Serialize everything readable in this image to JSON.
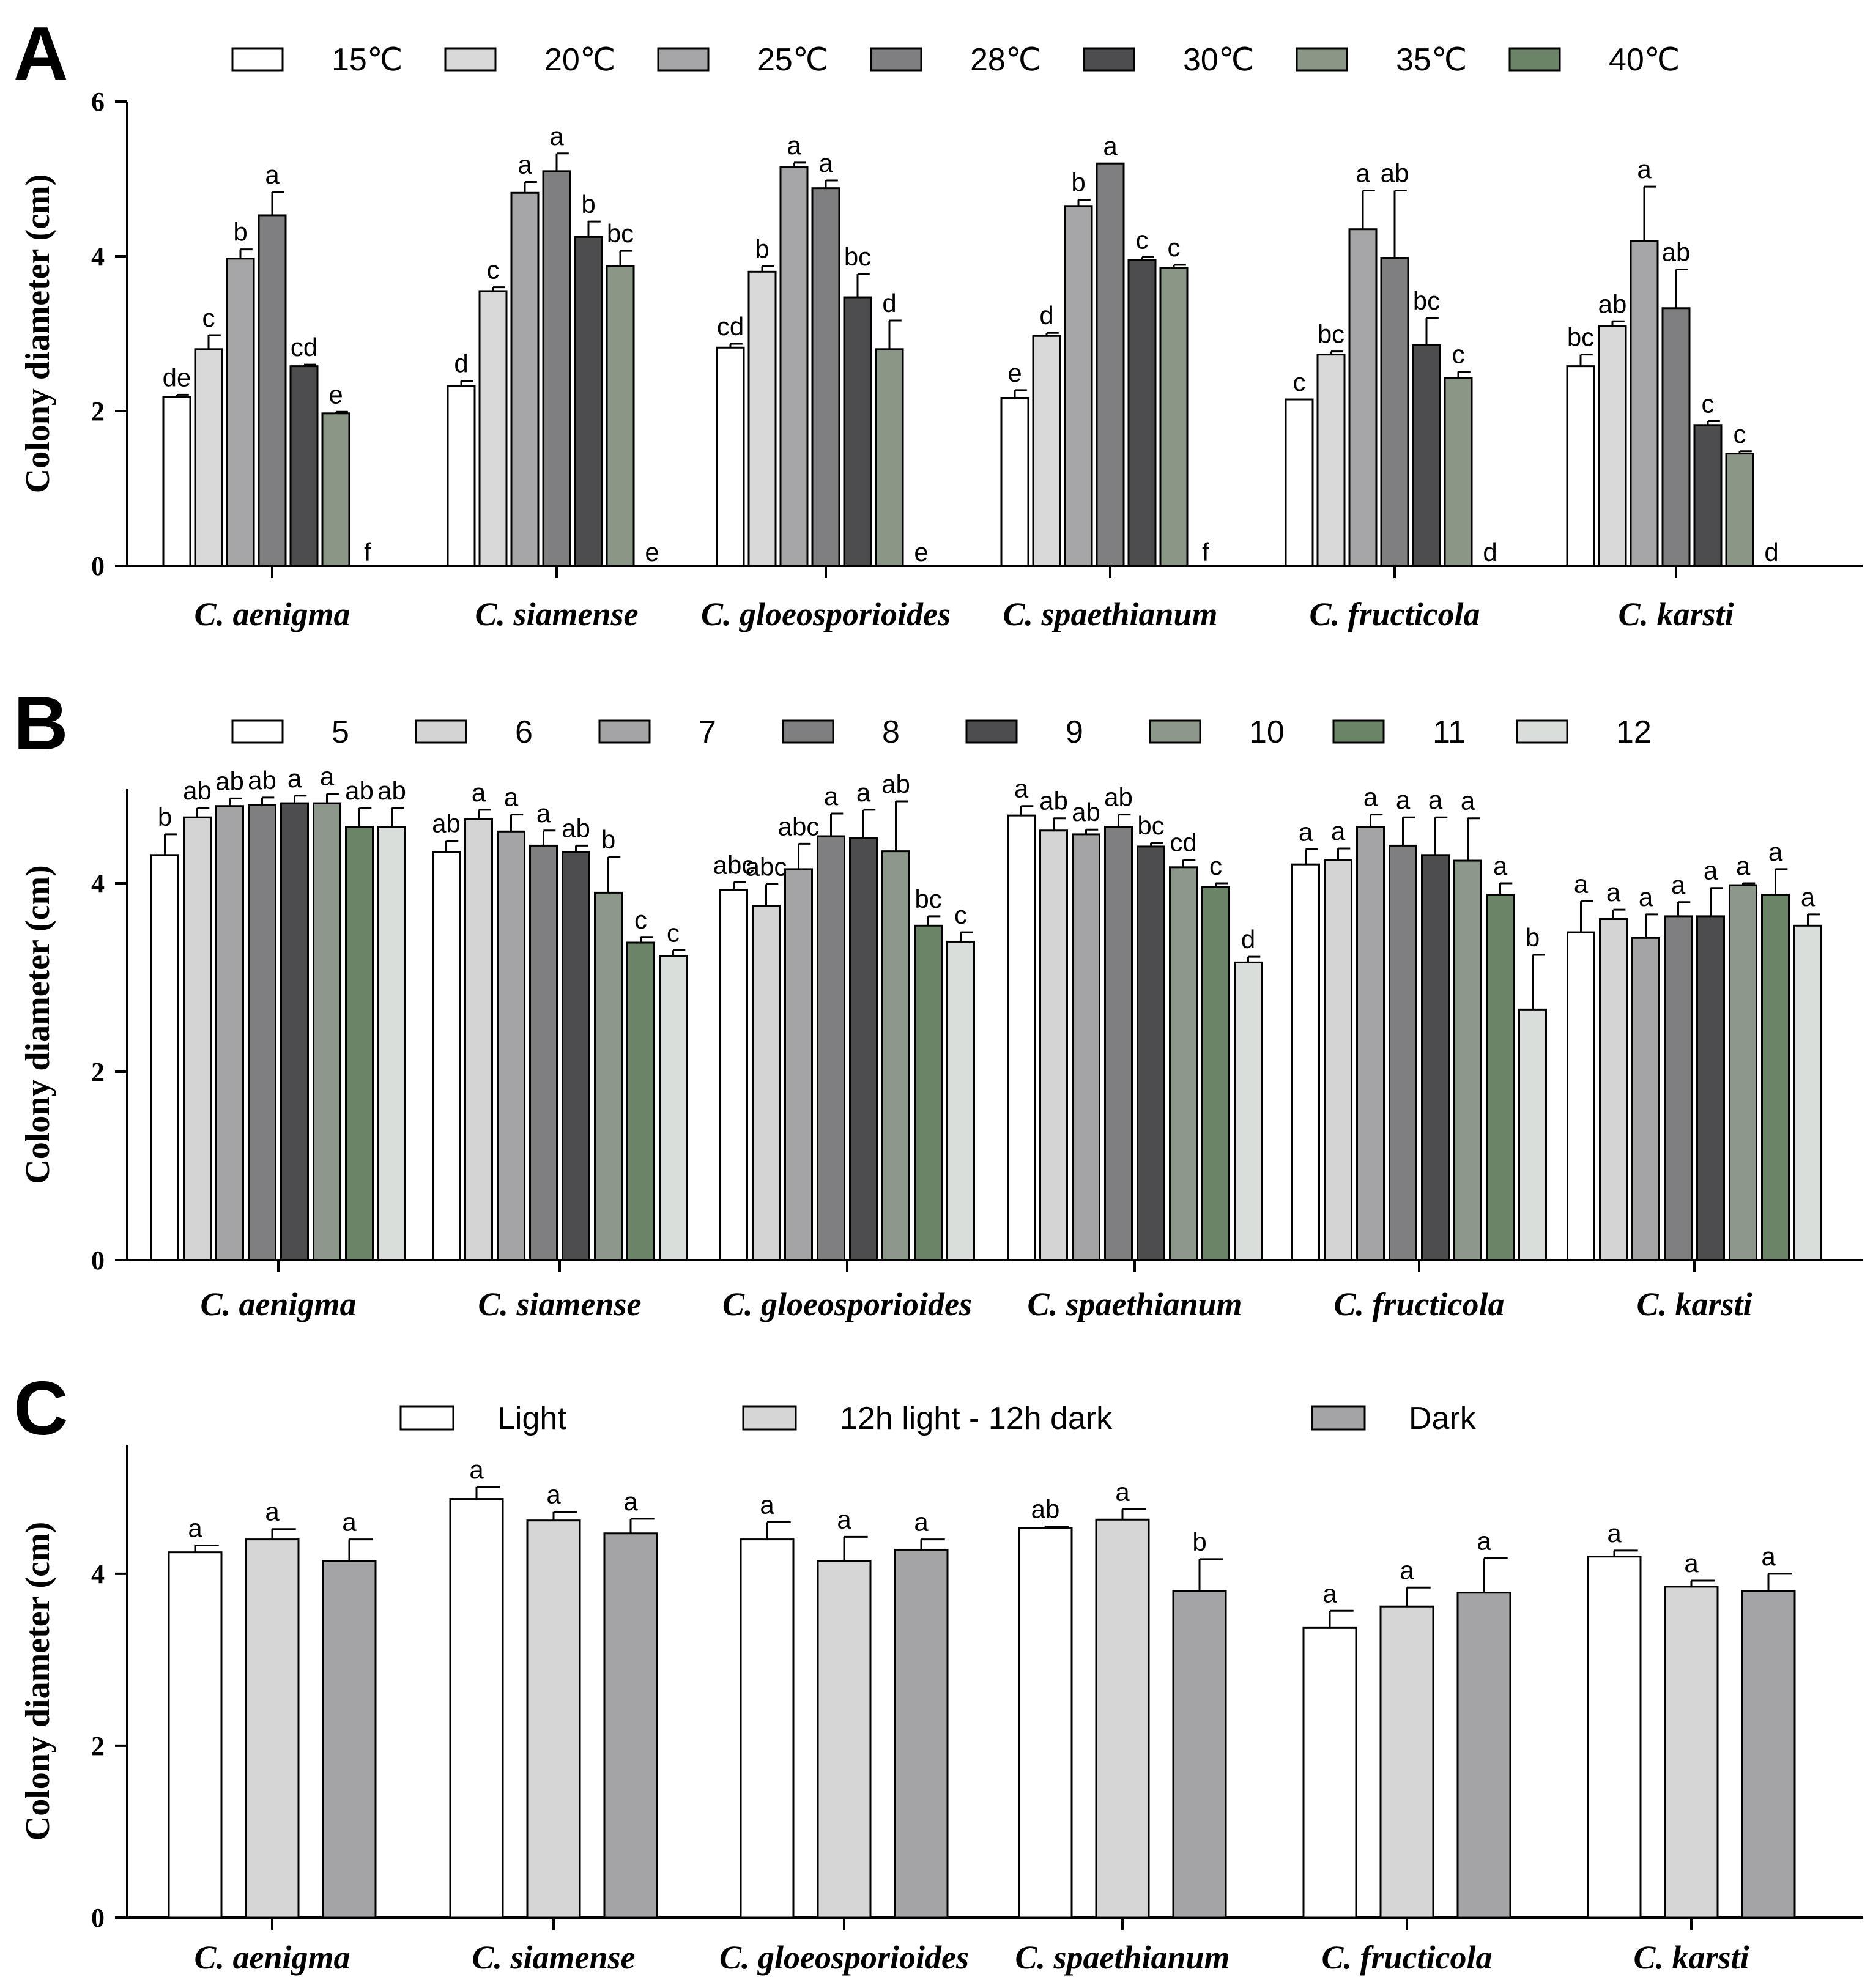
{
  "colors": {
    "15C": "#ffffff",
    "20C": "#d9d9d9",
    "25C": "#a6a6a9",
    "28C": "#7f7f82",
    "30C": "#4d4d4f",
    "35C": "#8a9686",
    "40C": "#6b8367",
    "pH5": "#ffffff",
    "pH6": "#d4d4d4",
    "pH7": "#a4a4a7",
    "pH8": "#7f7f82",
    "pH9": "#4d4d4f",
    "pH10": "#8c9889",
    "pH11": "#6b8367",
    "pH12": "#dadedb",
    "light": "#ffffff",
    "cycle": "#d6d6d6",
    "dark": "#a4a4a7"
  },
  "chart_data": [
    {
      "type": "bar",
      "panel": "A",
      "ylabel": "Colony diameter (cm)",
      "ylim": [
        0,
        6
      ],
      "yticks": [
        "0",
        "2",
        "4",
        "6"
      ],
      "categories": [
        "C. aenigma",
        "C. siamense",
        "C. gloeosporioides",
        "C. spaethianum",
        "C. fructicola",
        "C. karsti"
      ],
      "series": [
        {
          "name": "15℃",
          "color_key": "15C",
          "values": [
            2.18,
            2.32,
            2.82,
            2.17,
            2.15,
            2.58
          ],
          "errors": [
            0.03,
            0.07,
            0.05,
            0.1,
            0,
            0.15
          ],
          "labels": [
            "de",
            "d",
            "cd",
            "e",
            "c",
            "bc"
          ]
        },
        {
          "name": "20℃",
          "color_key": "20C",
          "values": [
            2.8,
            3.55,
            3.8,
            2.97,
            2.73,
            3.1
          ],
          "errors": [
            0.18,
            0.05,
            0.07,
            0.04,
            0.04,
            0.06
          ],
          "labels": [
            "c",
            "c",
            "b",
            "d",
            "bc",
            "ab"
          ]
        },
        {
          "name": "25℃",
          "color_key": "25C",
          "values": [
            3.97,
            4.82,
            5.15,
            4.65,
            4.35,
            4.2
          ],
          "errors": [
            0.12,
            0.14,
            0.06,
            0.08,
            0.5,
            0.7
          ],
          "labels": [
            "b",
            "a",
            "a",
            "b",
            "a",
            "a"
          ]
        },
        {
          "name": "28℃",
          "color_key": "28C",
          "values": [
            4.53,
            5.1,
            4.88,
            5.2,
            3.98,
            3.33
          ],
          "errors": [
            0.3,
            0.23,
            0.1,
            0,
            0.87,
            0.5
          ],
          "labels": [
            "a",
            "a",
            "a",
            "a",
            "ab",
            "ab"
          ]
        },
        {
          "name": "30℃",
          "color_key": "30C",
          "values": [
            2.58,
            4.25,
            3.47,
            3.95,
            2.85,
            1.82
          ],
          "errors": [
            0.02,
            0.2,
            0.3,
            0.04,
            0.35,
            0.05
          ],
          "labels": [
            "cd",
            "b",
            "bc",
            "c",
            "bc",
            "c"
          ]
        },
        {
          "name": "35℃",
          "color_key": "35C",
          "values": [
            1.97,
            3.87,
            2.8,
            3.85,
            2.43,
            1.45
          ],
          "errors": [
            0.02,
            0.2,
            0.37,
            0.04,
            0.08,
            0.03
          ],
          "labels": [
            "e",
            "bc",
            "d",
            "c",
            "c",
            "c"
          ]
        },
        {
          "name": "40℃",
          "color_key": "40C",
          "values": [
            0,
            0,
            0,
            0,
            0,
            0
          ],
          "errors": [
            0,
            0,
            0,
            0,
            0,
            0
          ],
          "labels": [
            "f",
            "e",
            "e",
            "f",
            "d",
            "d"
          ]
        }
      ]
    },
    {
      "type": "bar",
      "panel": "B",
      "ylabel": "Colony diameter (cm)",
      "ylim": [
        0,
        5
      ],
      "yticks": [
        "0",
        "2",
        "4"
      ],
      "categories": [
        "C. aenigma",
        "C. siamense",
        "C. gloeosporioides",
        "C. spaethianum",
        "C. fructicola",
        "C. karsti"
      ],
      "series": [
        {
          "name": "5",
          "color_key": "pH5",
          "values": [
            4.3,
            4.33,
            3.93,
            4.72,
            4.2,
            3.48
          ],
          "errors": [
            0.22,
            0.12,
            0.08,
            0.1,
            0.16,
            0.33
          ],
          "labels": [
            "b",
            "ab",
            "abc",
            "a",
            "a",
            "a"
          ]
        },
        {
          "name": "6",
          "color_key": "pH6",
          "values": [
            4.7,
            4.68,
            3.76,
            4.56,
            4.25,
            3.62
          ],
          "errors": [
            0.1,
            0.1,
            0.23,
            0.13,
            0.12,
            0.1
          ],
          "labels": [
            "ab",
            "a",
            "abc",
            "ab",
            "a",
            "a"
          ]
        },
        {
          "name": "7",
          "color_key": "pH7",
          "values": [
            4.82,
            4.55,
            4.15,
            4.52,
            4.6,
            3.42
          ],
          "errors": [
            0.08,
            0.18,
            0.27,
            0.05,
            0.13,
            0.25
          ],
          "labels": [
            "ab",
            "a",
            "abc",
            "ab",
            "a",
            "a"
          ]
        },
        {
          "name": "8",
          "color_key": "pH8",
          "values": [
            4.83,
            4.4,
            4.5,
            4.6,
            4.4,
            3.65
          ],
          "errors": [
            0.08,
            0.16,
            0.24,
            0.13,
            0.3,
            0.15
          ],
          "labels": [
            "ab",
            "a",
            "a",
            "ab",
            "a",
            "a"
          ]
        },
        {
          "name": "9",
          "color_key": "pH9",
          "values": [
            4.85,
            4.33,
            4.48,
            4.39,
            4.3,
            3.65
          ],
          "errors": [
            0.08,
            0.07,
            0.3,
            0.04,
            0.4,
            0.3
          ],
          "labels": [
            "a",
            "ab",
            "a",
            "bc",
            "a",
            "a"
          ]
        },
        {
          "name": "10",
          "color_key": "pH10",
          "values": [
            4.85,
            3.9,
            4.34,
            4.17,
            4.24,
            3.98
          ],
          "errors": [
            0.1,
            0.38,
            0.53,
            0.08,
            0.45,
            0.02
          ],
          "labels": [
            "a",
            "b",
            "ab",
            "cd",
            "a",
            "a"
          ]
        },
        {
          "name": "11",
          "color_key": "pH11",
          "values": [
            4.6,
            3.37,
            3.55,
            3.96,
            3.88,
            3.88
          ],
          "errors": [
            0.2,
            0.06,
            0.1,
            0.04,
            0.12,
            0.27
          ],
          "labels": [
            "ab",
            "c",
            "bc",
            "c",
            "a",
            "a"
          ]
        },
        {
          "name": "12",
          "color_key": "pH12",
          "values": [
            4.6,
            3.23,
            3.38,
            3.16,
            2.66,
            3.55
          ],
          "errors": [
            0.2,
            0.06,
            0.1,
            0.06,
            0.58,
            0.12
          ],
          "labels": [
            "ab",
            "c",
            "c",
            "d",
            "b",
            "a"
          ]
        }
      ]
    },
    {
      "type": "bar",
      "panel": "C",
      "ylabel": "Colony diameter (cm)",
      "ylim": [
        0,
        5.5
      ],
      "yticks": [
        "0",
        "2",
        "4"
      ],
      "categories": [
        "C. aenigma",
        "C. siamense",
        "C. gloeosporioides",
        "C. spaethianum",
        "C. fructicola",
        "C. karsti"
      ],
      "series": [
        {
          "name": "Light",
          "color_key": "light",
          "values": [
            4.25,
            4.87,
            4.4,
            4.53,
            3.37,
            4.2
          ],
          "errors": [
            0.08,
            0.14,
            0.2,
            0.02,
            0.2,
            0.07
          ],
          "labels": [
            "a",
            "a",
            "a",
            "ab",
            "a",
            "a"
          ]
        },
        {
          "name": "12h light - 12h dark",
          "color_key": "cycle",
          "values": [
            4.4,
            4.62,
            4.15,
            4.63,
            3.62,
            3.85
          ],
          "errors": [
            0.12,
            0.1,
            0.28,
            0.12,
            0.22,
            0.07
          ],
          "labels": [
            "a",
            "a",
            "a",
            "a",
            "a",
            "a"
          ]
        },
        {
          "name": "Dark",
          "color_key": "dark",
          "values": [
            4.15,
            4.47,
            4.28,
            3.8,
            3.78,
            3.8
          ],
          "errors": [
            0.25,
            0.17,
            0.12,
            0.37,
            0.4,
            0.2
          ],
          "labels": [
            "a",
            "a",
            "a",
            "b",
            "a",
            "a"
          ]
        }
      ]
    }
  ]
}
